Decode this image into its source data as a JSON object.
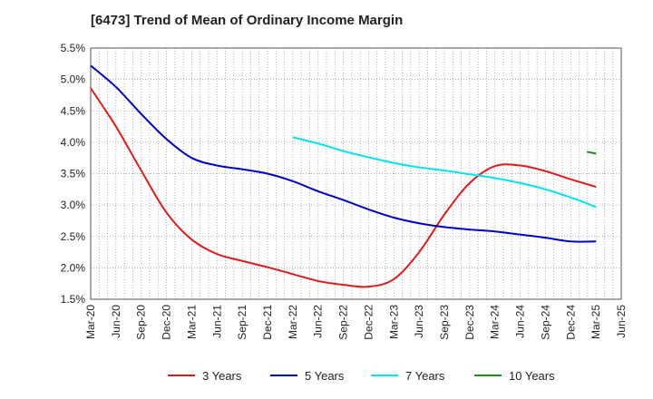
{
  "chart_data": {
    "type": "line",
    "title": "[6473]  Trend of Mean of Ordinary Income Margin",
    "xlabel": "",
    "ylabel": "",
    "x_ticks": [
      "Mar-20",
      "Jun-20",
      "Sep-20",
      "Dec-20",
      "Mar-21",
      "Jun-21",
      "Sep-21",
      "Dec-21",
      "Mar-22",
      "Jun-22",
      "Sep-22",
      "Dec-22",
      "Mar-23",
      "Jun-23",
      "Sep-23",
      "Dec-23",
      "Mar-24",
      "Jun-24",
      "Sep-24",
      "Dec-24",
      "Mar-25",
      "Jun-25"
    ],
    "y_ticks": [
      "5.5%",
      "5.0%",
      "4.5%",
      "4.0%",
      "3.5%",
      "3.0%",
      "2.5%",
      "2.0%",
      "1.5%"
    ],
    "ylim": [
      1.5,
      5.5
    ],
    "grid": true,
    "legend_position": "bottom",
    "series": [
      {
        "name": "3 Years",
        "color": "#e31a1c",
        "values": [
          4.86,
          4.25,
          3.55,
          2.88,
          2.45,
          2.22,
          2.11,
          2.01,
          1.9,
          1.79,
          1.73,
          1.7,
          1.82,
          2.25,
          2.85,
          3.35,
          3.62,
          3.63,
          3.54,
          3.41,
          3.29
        ]
      },
      {
        "name": "5 Years",
        "color": "#0000cc",
        "values": [
          5.22,
          4.88,
          4.45,
          4.05,
          3.75,
          3.63,
          3.57,
          3.5,
          3.38,
          3.22,
          3.08,
          2.93,
          2.8,
          2.71,
          2.65,
          2.61,
          2.58,
          2.53,
          2.48,
          2.42,
          2.42
        ]
      },
      {
        "name": "7 Years",
        "color": "#00e5ee",
        "values": [
          null,
          null,
          null,
          null,
          null,
          null,
          null,
          null,
          4.08,
          3.98,
          3.86,
          3.76,
          3.67,
          3.6,
          3.55,
          3.49,
          3.43,
          3.35,
          3.25,
          3.12,
          2.97
        ]
      },
      {
        "name": "10 Years",
        "color": "#228b22",
        "values": [
          null,
          null,
          null,
          null,
          null,
          null,
          null,
          null,
          null,
          null,
          null,
          null,
          null,
          null,
          null,
          null,
          null,
          null,
          null,
          null,
          3.82
        ]
      }
    ]
  }
}
